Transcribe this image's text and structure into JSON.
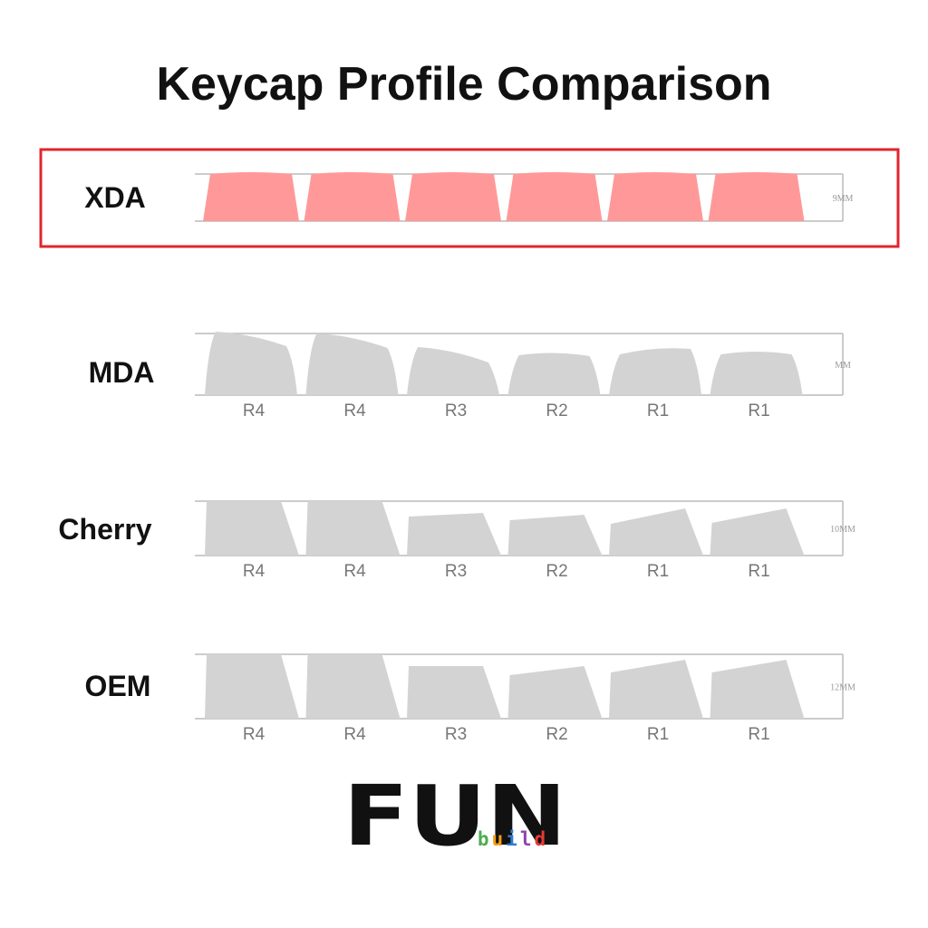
{
  "title": "Keycap Profile Comparison",
  "profiles": [
    {
      "name": "XDA",
      "height": "9MM"
    },
    {
      "name": "MDA",
      "height": "MM",
      "rows": [
        "R4",
        "R4",
        "R3",
        "R2",
        "R1",
        "R1"
      ]
    },
    {
      "name": "Cherry",
      "height": "10MM",
      "rows": [
        "R4",
        "R4",
        "R3",
        "R2",
        "R1",
        "R1"
      ]
    },
    {
      "name": "OEM",
      "height": "12MM",
      "rows": [
        "R4",
        "R4",
        "R3",
        "R2",
        "R1",
        "R1"
      ]
    }
  ],
  "logo": {
    "mark": "FUN",
    "sub": "build"
  }
}
